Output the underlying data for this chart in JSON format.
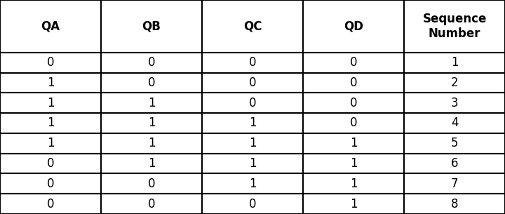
{
  "headers": [
    "QA",
    "QB",
    "QC",
    "QD",
    "Sequence\nNumber"
  ],
  "rows": [
    [
      "0",
      "0",
      "0",
      "0",
      "1"
    ],
    [
      "1",
      "0",
      "0",
      "0",
      "2"
    ],
    [
      "1",
      "1",
      "0",
      "0",
      "3"
    ],
    [
      "1",
      "1",
      "1",
      "0",
      "4"
    ],
    [
      "1",
      "1",
      "1",
      "1",
      "5"
    ],
    [
      "0",
      "1",
      "1",
      "1",
      "6"
    ],
    [
      "0",
      "0",
      "1",
      "1",
      "7"
    ],
    [
      "0",
      "0",
      "0",
      "1",
      "8"
    ]
  ],
  "bg_color": "#ffffff",
  "border_color": "#000000",
  "text_color": "#000000",
  "header_fontsize": 12,
  "cell_fontsize": 12,
  "figsize": [
    7.2,
    3.05
  ],
  "dpi": 100,
  "lw": 1.5
}
